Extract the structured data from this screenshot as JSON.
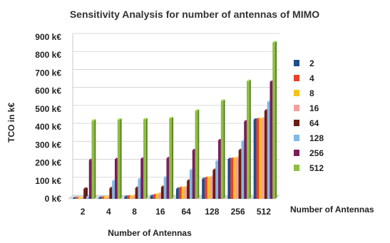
{
  "chart_data": {
    "type": "bar",
    "title": "Sensitivity Analysis for number of antennas of MIMO",
    "xlabel": "Number of Antennas",
    "ylabel": "TCO in k€",
    "side_label": "Number of Antennas",
    "categories": [
      "2",
      "4",
      "8",
      "16",
      "64",
      "128",
      "256",
      "512"
    ],
    "yticks": [
      "0 k€",
      "100 k€",
      "200 k€",
      "300 k€",
      "400 k€",
      "500 k€",
      "600 k€",
      "700 k€",
      "800 k€",
      "900 k€"
    ],
    "ylim": [
      0,
      900
    ],
    "grid": true,
    "legend_position": "right",
    "series": [
      {
        "name": "2",
        "color": "#1f4e8c",
        "values": [
          2,
          5,
          10,
          15,
          55,
          110,
          220,
          440
        ]
      },
      {
        "name": "4",
        "color": "#e8402a",
        "values": [
          3,
          6,
          12,
          20,
          60,
          115,
          222,
          442
        ]
      },
      {
        "name": "8",
        "color": "#f7c21a",
        "values": [
          4,
          8,
          14,
          25,
          62,
          118,
          225,
          445
        ]
      },
      {
        "name": "16",
        "color": "#f4a0a0",
        "values": [
          6,
          10,
          18,
          30,
          65,
          122,
          228,
          448
        ]
      },
      {
        "name": "64",
        "color": "#6b1c14",
        "values": [
          55,
          58,
          60,
          65,
          100,
          160,
          270,
          490
        ]
      },
      {
        "name": "128",
        "color": "#7fb8e6",
        "values": [
          10,
          100,
          110,
          120,
          160,
          210,
          320,
          540
        ]
      },
      {
        "name": "256",
        "color": "#7a1f5a",
        "values": [
          215,
          220,
          222,
          225,
          270,
          325,
          430,
          650
        ]
      },
      {
        "name": "512",
        "color": "#8cbf3f",
        "values": [
          435,
          440,
          442,
          448,
          490,
          545,
          655,
          870
        ]
      }
    ]
  }
}
